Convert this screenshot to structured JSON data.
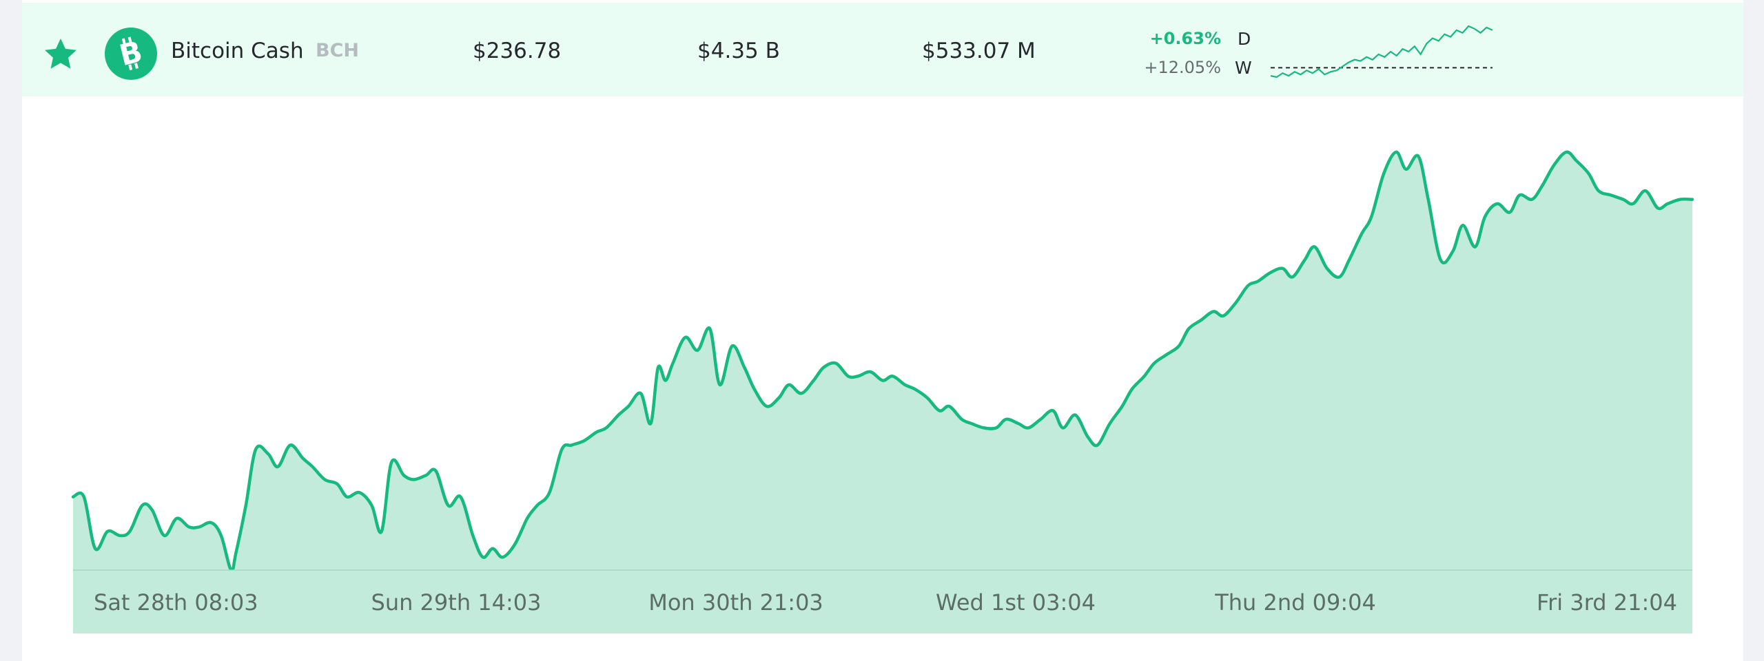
{
  "asset": {
    "name": "Bitcoin Cash",
    "symbol": "BCH",
    "icon": "bitcoin-icon",
    "favorite_icon": "star-icon",
    "price": "$236.78",
    "market_cap": "$4.35 B",
    "volume": "$533.07 M",
    "change_day": "+0.63%",
    "change_day_label": "D",
    "change_week": "+12.05%",
    "change_week_label": "W"
  },
  "colors": {
    "accent": "#16b980",
    "row_background": "#eafdf5",
    "area_fill": "#c2ebdc",
    "muted_text": "#b4bcbf"
  },
  "chart_data": {
    "type": "area",
    "x_tick_labels": [
      "Sat 28th 08:03",
      "Sun 29th 14:03",
      "Mon 30th 21:03",
      "Wed 1st 03:04",
      "Thu 2nd 09:04",
      "Fri 3rd 21:04"
    ],
    "x_range_days": [
      0,
      6.56
    ],
    "ylim": [
      0,
      100
    ],
    "y_unit": "relative price (no axis values printed)",
    "grid": false,
    "legend": "none",
    "x": [
      0,
      0.044,
      0.09,
      0.14,
      0.19,
      0.23,
      0.28,
      0.32,
      0.37,
      0.42,
      0.47,
      0.51,
      0.56,
      0.6,
      0.64,
      0.66,
      0.7,
      0.74,
      0.79,
      0.83,
      0.88,
      0.93,
      0.97,
      1.02,
      1.07,
      1.11,
      1.16,
      1.21,
      1.25,
      1.29,
      1.34,
      1.38,
      1.43,
      1.47,
      1.52,
      1.57,
      1.62,
      1.66,
      1.7,
      1.74,
      1.79,
      1.84,
      1.88,
      1.93,
      1.98,
      2.02,
      2.07,
      2.12,
      2.16,
      2.21,
      2.25,
      2.3,
      2.34,
      2.37,
      2.4,
      2.43,
      2.48,
      2.53,
      2.58,
      2.62,
      2.67,
      2.72,
      2.76,
      2.81,
      2.86,
      2.9,
      2.95,
      3.0,
      3.04,
      3.09,
      3.14,
      3.18,
      3.23,
      3.28,
      3.32,
      3.37,
      3.41,
      3.46,
      3.51,
      3.55,
      3.6,
      3.64,
      3.69,
      3.74,
      3.78,
      3.83,
      3.87,
      3.92,
      3.97,
      4.01,
      4.06,
      4.11,
      4.15,
      4.2,
      4.25,
      4.29,
      4.34,
      4.38,
      4.43,
      4.48,
      4.52,
      4.57,
      4.62,
      4.66,
      4.71,
      4.76,
      4.8,
      4.85,
      4.9,
      4.94,
      4.99,
      5.03,
      5.08,
      5.13,
      5.17,
      5.22,
      5.26,
      5.31,
      5.36,
      5.4,
      5.45,
      5.49,
      5.54,
      5.59,
      5.63,
      5.68,
      5.72,
      5.77,
      5.82,
      5.86,
      5.91,
      5.95,
      6.0,
      6.05,
      6.09,
      6.14,
      6.18,
      6.23,
      6.28,
      6.32,
      6.37,
      6.42,
      6.46,
      6.51,
      6.56
    ],
    "y": [
      17,
      17,
      5,
      9,
      8,
      9,
      15,
      14,
      8,
      12,
      10,
      10,
      11,
      8,
      0,
      4,
      15,
      28,
      27,
      24,
      29,
      26,
      24,
      21,
      20,
      17,
      18,
      15,
      9,
      25,
      22,
      21,
      22,
      23,
      15,
      17,
      8,
      3,
      5,
      3,
      6,
      12,
      15,
      18,
      28,
      29,
      30,
      32,
      33,
      36,
      38,
      41,
      34,
      47,
      44,
      48,
      54,
      51,
      56,
      43,
      52,
      47,
      42,
      38,
      40,
      43,
      41,
      44,
      47,
      48,
      45,
      45,
      46,
      44,
      45,
      43,
      42,
      40,
      37,
      38,
      35,
      34,
      33,
      33,
      35,
      34,
      33,
      35,
      37,
      33,
      36,
      31,
      29,
      34,
      38,
      42,
      45,
      48,
      50,
      52,
      56,
      58,
      60,
      59,
      62,
      66,
      67,
      69,
      70,
      68,
      72,
      75,
      70,
      68,
      72,
      78,
      82,
      92,
      97,
      93,
      96,
      86,
      72,
      74,
      80,
      75,
      82,
      85,
      83,
      87,
      86,
      89,
      94,
      97,
      95,
      92,
      88,
      87,
      86,
      85,
      88,
      84,
      85,
      86,
      86
    ],
    "sparkline": {
      "type": "line",
      "y": [
        2,
        1,
        4,
        2,
        5,
        3,
        6,
        4,
        7,
        3,
        5,
        6,
        9,
        12,
        14,
        13,
        16,
        14,
        18,
        16,
        20,
        17,
        22,
        20,
        24,
        18,
        26,
        30,
        28,
        33,
        31,
        36,
        34,
        39,
        37,
        34,
        38,
        36
      ],
      "baseline": 8
    }
  }
}
